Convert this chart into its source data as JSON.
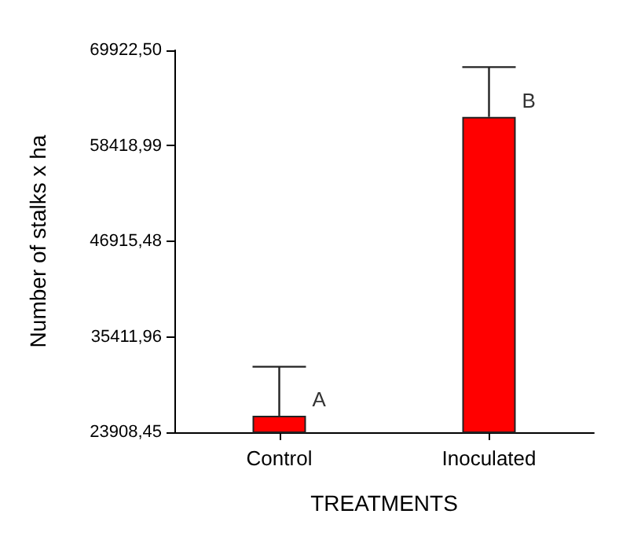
{
  "chart_data": {
    "type": "bar",
    "xlabel": "TREATMENTS",
    "ylabel": "Number of stalks x ha",
    "categories": [
      "Control",
      "Inoculated"
    ],
    "values": [
      25900,
      61900
    ],
    "errors": [
      [
        25900,
        31800
      ],
      [
        61900,
        67900
      ]
    ],
    "color": "#ff0000",
    "ylim": [
      23908.45,
      69922.5
    ],
    "yticks": [
      {
        "value": 23908.45,
        "label": "23908,45"
      },
      {
        "value": 35411.96,
        "label": "35411,96"
      },
      {
        "value": 46915.48,
        "label": "46915,48"
      },
      {
        "value": 58418.99,
        "label": "58418,99"
      },
      {
        "value": 69922.5,
        "label": "69922,50"
      }
    ],
    "annotations": [
      {
        "text": "A",
        "x": "Control",
        "y": 25900
      },
      {
        "text": "B",
        "x": "Inoculated",
        "y": 61900
      }
    ],
    "grid": false
  }
}
